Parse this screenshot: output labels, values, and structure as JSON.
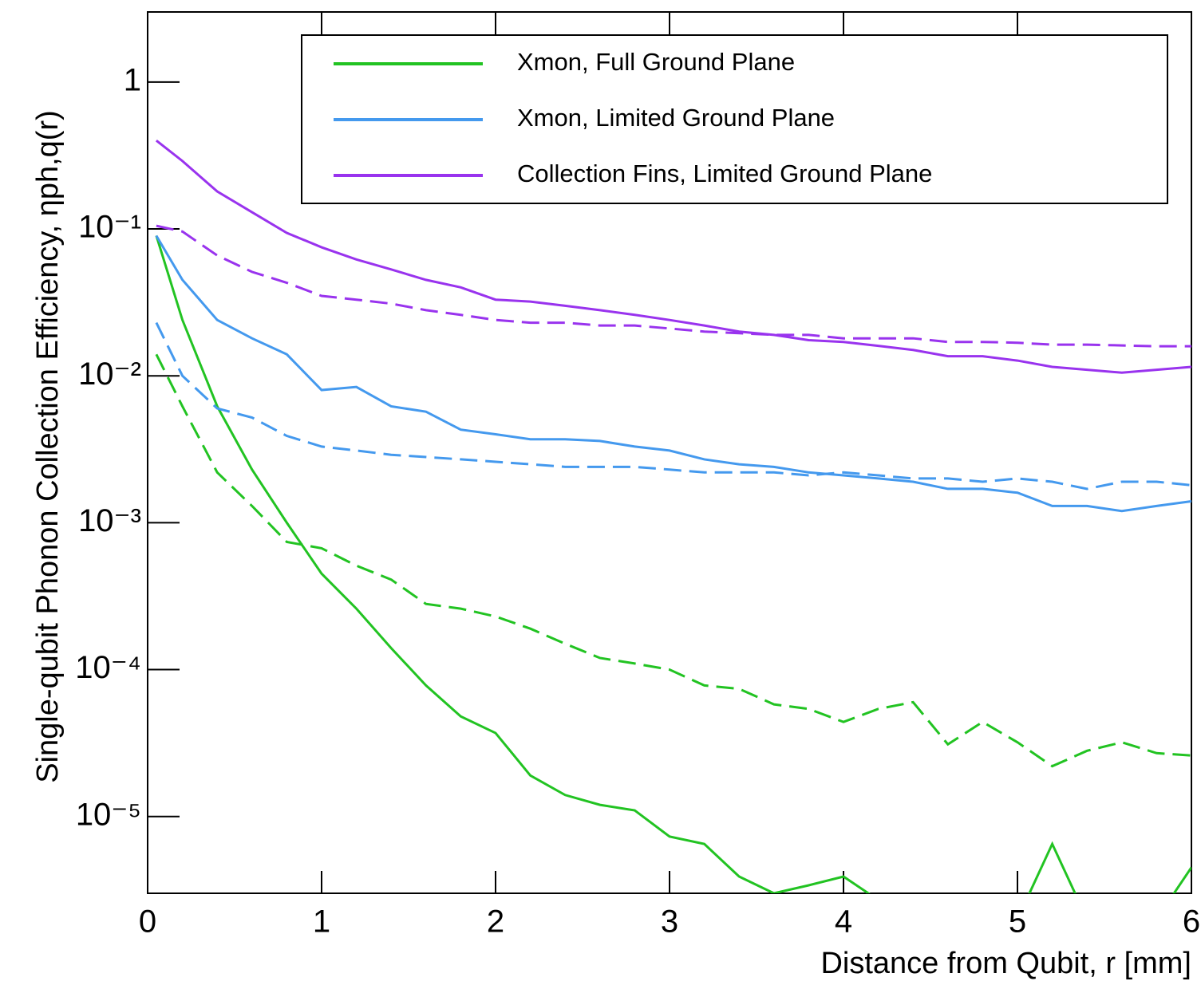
{
  "chart_data": {
    "type": "line",
    "y_label": "Single-qubit Phonon Collection Efficiency, ηph,q(r)",
    "x_label": "Distance from Qubit, r [mm]",
    "x": [
      0.05,
      0.2,
      0.4,
      0.6,
      0.8,
      1.0,
      1.2,
      1.4,
      1.6,
      1.8,
      2.0,
      2.2,
      2.4,
      2.6,
      2.8,
      3.0,
      3.2,
      3.4,
      3.6,
      3.8,
      4.0,
      4.2,
      4.4,
      4.6,
      4.8,
      5.0,
      5.2,
      5.4,
      5.6,
      5.8,
      6.0
    ],
    "series": [
      {
        "name": "Xmon, Full Ground Plane",
        "color": "#22c322",
        "linestyle": "solid",
        "values": [
          0.09,
          0.024,
          0.0062,
          0.0023,
          0.001,
          0.00045,
          0.00026,
          0.00014,
          7.8e-05,
          4.8e-05,
          3.7e-05,
          1.9e-05,
          1.4e-05,
          1.2e-05,
          1.1e-05,
          7.3e-06,
          6.5e-06,
          3.9e-06,
          3e-06,
          3.4e-06,
          3.9e-06,
          2.7e-06,
          2e-06,
          2e-06,
          2e-06,
          2e-06,
          6.5e-06,
          2e-06,
          2e-06,
          2e-06,
          4.5e-06
        ]
      },
      {
        "name": "Xmon, Limited Ground Plane",
        "color": "#4499ee",
        "linestyle": "solid",
        "values": [
          0.09,
          0.045,
          0.024,
          0.018,
          0.014,
          0.008,
          0.0084,
          0.0062,
          0.0057,
          0.0043,
          0.004,
          0.0037,
          0.0037,
          0.0036,
          0.0033,
          0.0031,
          0.0027,
          0.0025,
          0.0024,
          0.0022,
          0.0021,
          0.002,
          0.0019,
          0.0017,
          0.0017,
          0.0016,
          0.0013,
          0.0013,
          0.0012,
          0.0013,
          0.0014
        ]
      },
      {
        "name": "Collection Fins, Limited Ground Plane",
        "color": "#9933ee",
        "linestyle": "solid",
        "values": [
          0.4,
          0.29,
          0.18,
          0.13,
          0.094,
          0.075,
          0.062,
          0.053,
          0.045,
          0.04,
          0.033,
          0.032,
          0.03,
          0.028,
          0.026,
          0.024,
          0.022,
          0.02,
          0.019,
          0.0175,
          0.017,
          0.016,
          0.015,
          0.0136,
          0.0136,
          0.0127,
          0.0115,
          0.011,
          0.0105,
          0.011,
          0.0115
        ]
      },
      {
        "color": "#22c322",
        "linestyle": "dashed",
        "values": [
          0.014,
          0.0062,
          0.0022,
          0.0013,
          0.00074,
          0.00067,
          0.00051,
          0.00041,
          0.00028,
          0.00026,
          0.00023,
          0.00019,
          0.00015,
          0.00012,
          0.00011,
          0.0001,
          7.8e-05,
          7.4e-05,
          5.8e-05,
          5.4e-05,
          4.4e-05,
          5.4e-05,
          6e-05,
          3.1e-05,
          4.4e-05,
          3.2e-05,
          2.2e-05,
          2.8e-05,
          3.2e-05,
          2.7e-05,
          2.6e-05
        ]
      },
      {
        "color": "#4499ee",
        "linestyle": "dashed",
        "values": [
          0.023,
          0.01,
          0.006,
          0.0052,
          0.0039,
          0.0033,
          0.0031,
          0.0029,
          0.0028,
          0.0027,
          0.0026,
          0.0025,
          0.0024,
          0.0024,
          0.0024,
          0.0023,
          0.0022,
          0.0022,
          0.0022,
          0.0021,
          0.0022,
          0.0021,
          0.002,
          0.002,
          0.0019,
          0.002,
          0.0019,
          0.0017,
          0.0019,
          0.0019,
          0.0018
        ]
      },
      {
        "color": "#9933ee",
        "linestyle": "dashed",
        "values": [
          0.105,
          0.096,
          0.066,
          0.051,
          0.043,
          0.035,
          0.033,
          0.031,
          0.028,
          0.026,
          0.024,
          0.023,
          0.023,
          0.022,
          0.022,
          0.021,
          0.02,
          0.0195,
          0.019,
          0.019,
          0.018,
          0.018,
          0.018,
          0.017,
          0.017,
          0.0168,
          0.0163,
          0.0163,
          0.0161,
          0.0159,
          0.0159
        ]
      }
    ],
    "xlim": [
      0,
      6
    ],
    "xticks": [
      0,
      1,
      2,
      3,
      4,
      5,
      6
    ],
    "ylim": [
      3e-06,
      3
    ],
    "y_scale": "log",
    "yticks": [
      {
        "value": 1e-05,
        "label": "10⁻⁵"
      },
      {
        "value": 0.0001,
        "label": "10⁻⁴"
      },
      {
        "value": 0.001,
        "label": "10⁻³"
      },
      {
        "value": 0.01,
        "label": "10⁻²"
      },
      {
        "value": 0.1,
        "label": "10⁻¹"
      },
      1
    ],
    "legend": "top-right"
  }
}
